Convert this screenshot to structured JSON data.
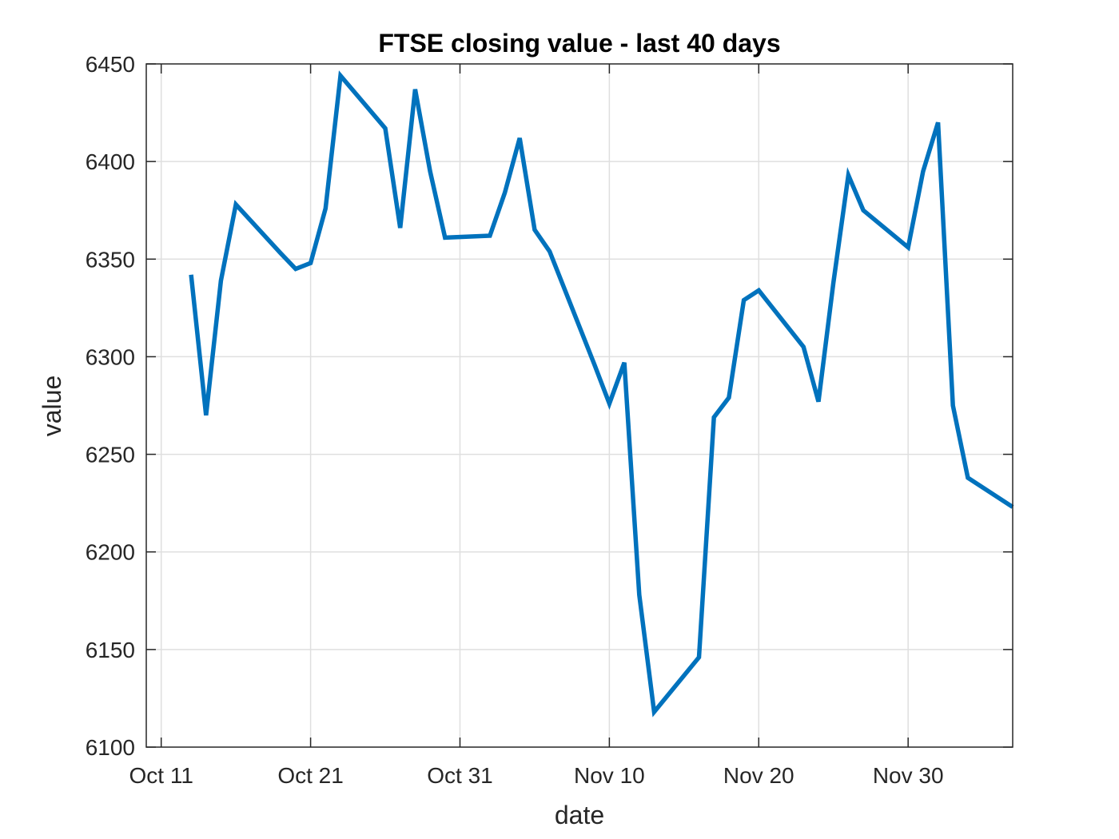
{
  "chart_data": {
    "type": "line",
    "title": "FTSE closing value - last 40 days",
    "xlabel": "date",
    "ylabel": "value",
    "xlim": [
      "2015-10-10",
      "2015-12-07"
    ],
    "ylim": [
      6100,
      6450
    ],
    "x_ticks": [
      {
        "date": "2015-10-11",
        "label": "Oct 11"
      },
      {
        "date": "2015-10-21",
        "label": "Oct 21"
      },
      {
        "date": "2015-10-31",
        "label": "Oct 31"
      },
      {
        "date": "2015-11-10",
        "label": "Nov 10"
      },
      {
        "date": "2015-11-20",
        "label": "Nov 20"
      },
      {
        "date": "2015-11-30",
        "label": "Nov 30"
      }
    ],
    "y_ticks": [
      6100,
      6150,
      6200,
      6250,
      6300,
      6350,
      6400,
      6450
    ],
    "grid": true,
    "series": [
      {
        "color": "#0072bd",
        "points": [
          {
            "x": "2015-10-13",
            "y": 6342
          },
          {
            "x": "2015-10-14",
            "y": 6270
          },
          {
            "x": "2015-10-15",
            "y": 6339
          },
          {
            "x": "2015-10-16",
            "y": 6378
          },
          {
            "x": "2015-10-19",
            "y": 6353
          },
          {
            "x": "2015-10-20",
            "y": 6345
          },
          {
            "x": "2015-10-21",
            "y": 6348
          },
          {
            "x": "2015-10-22",
            "y": 6376
          },
          {
            "x": "2015-10-23",
            "y": 6444
          },
          {
            "x": "2015-10-26",
            "y": 6417
          },
          {
            "x": "2015-10-27",
            "y": 6366
          },
          {
            "x": "2015-10-28",
            "y": 6437
          },
          {
            "x": "2015-10-29",
            "y": 6395
          },
          {
            "x": "2015-10-30",
            "y": 6361
          },
          {
            "x": "2015-11-02",
            "y": 6362
          },
          {
            "x": "2015-11-03",
            "y": 6384
          },
          {
            "x": "2015-11-04",
            "y": 6412
          },
          {
            "x": "2015-11-05",
            "y": 6365
          },
          {
            "x": "2015-11-06",
            "y": 6354
          },
          {
            "x": "2015-11-09",
            "y": 6296
          },
          {
            "x": "2015-11-10",
            "y": 6276
          },
          {
            "x": "2015-11-11",
            "y": 6297
          },
          {
            "x": "2015-11-12",
            "y": 6178
          },
          {
            "x": "2015-11-13",
            "y": 6118
          },
          {
            "x": "2015-11-16",
            "y": 6146
          },
          {
            "x": "2015-11-17",
            "y": 6269
          },
          {
            "x": "2015-11-18",
            "y": 6279
          },
          {
            "x": "2015-11-19",
            "y": 6329
          },
          {
            "x": "2015-11-20",
            "y": 6334
          },
          {
            "x": "2015-11-23",
            "y": 6305
          },
          {
            "x": "2015-11-24",
            "y": 6277
          },
          {
            "x": "2015-11-25",
            "y": 6338
          },
          {
            "x": "2015-11-26",
            "y": 6393
          },
          {
            "x": "2015-11-27",
            "y": 6375
          },
          {
            "x": "2015-11-30",
            "y": 6356
          },
          {
            "x": "2015-12-01",
            "y": 6395
          },
          {
            "x": "2015-12-02",
            "y": 6420
          },
          {
            "x": "2015-12-03",
            "y": 6275
          },
          {
            "x": "2015-12-04",
            "y": 6238
          },
          {
            "x": "2015-12-07",
            "y": 6223
          }
        ]
      }
    ]
  }
}
